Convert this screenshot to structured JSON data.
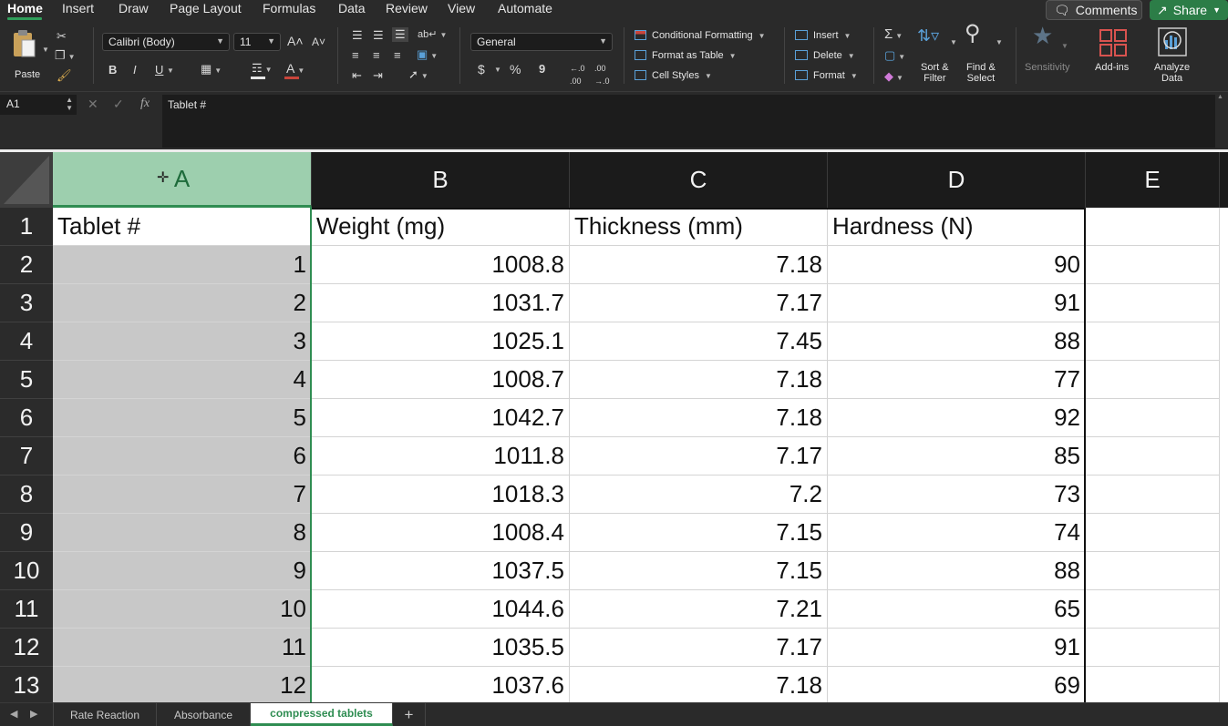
{
  "menu": {
    "tabs": [
      "Home",
      "Insert",
      "Draw",
      "Page Layout",
      "Formulas",
      "Data",
      "Review",
      "View",
      "Automate"
    ],
    "comments_label": "Comments",
    "share_label": "Share"
  },
  "ribbon": {
    "paste_label": "Paste",
    "font_name": "Calibri (Body)",
    "font_size": "11",
    "number_format": "General",
    "conditional_formatting": "Conditional Formatting",
    "format_as_table": "Format as Table",
    "cell_styles": "Cell Styles",
    "insert": "Insert",
    "delete": "Delete",
    "format": "Format",
    "sort_filter": [
      "Sort &",
      "Filter"
    ],
    "find_select": [
      "Find &",
      "Select"
    ],
    "sensitivity": "Sensitivity",
    "add_ins": "Add-ins",
    "analyze_data": [
      "Analyze",
      "Data"
    ],
    "bold": "B",
    "italic": "I",
    "underline": "U",
    "currency": "$",
    "percent": "%",
    "comma": "9"
  },
  "formula_bar": {
    "cell_ref": "A1",
    "fx": "fx",
    "content": "Tablet #"
  },
  "sheet": {
    "columns": [
      "A",
      "B",
      "C",
      "D",
      "E"
    ],
    "selected_column": "A",
    "rows": [
      {
        "n": "1",
        "a": "Tablet #",
        "b": "Weight (mg)",
        "c": "Thickness (mm)",
        "d": "Hardness (N)"
      },
      {
        "n": "2",
        "a": "1",
        "b": "1008.8",
        "c": "7.18",
        "d": "90"
      },
      {
        "n": "3",
        "a": "2",
        "b": "1031.7",
        "c": "7.17",
        "d": "91"
      },
      {
        "n": "4",
        "a": "3",
        "b": "1025.1",
        "c": "7.45",
        "d": "88"
      },
      {
        "n": "5",
        "a": "4",
        "b": "1008.7",
        "c": "7.18",
        "d": "77"
      },
      {
        "n": "6",
        "a": "5",
        "b": "1042.7",
        "c": "7.18",
        "d": "92"
      },
      {
        "n": "7",
        "a": "6",
        "b": "1011.8",
        "c": "7.17",
        "d": "85"
      },
      {
        "n": "8",
        "a": "7",
        "b": "1018.3",
        "c": "7.2",
        "d": "73"
      },
      {
        "n": "9",
        "a": "8",
        "b": "1008.4",
        "c": "7.15",
        "d": "74"
      },
      {
        "n": "10",
        "a": "9",
        "b": "1037.5",
        "c": "7.15",
        "d": "88"
      },
      {
        "n": "11",
        "a": "10",
        "b": "1044.6",
        "c": "7.21",
        "d": "65"
      },
      {
        "n": "12",
        "a": "11",
        "b": "1035.5",
        "c": "7.17",
        "d": "91"
      },
      {
        "n": "13",
        "a": "12",
        "b": "1037.6",
        "c": "7.18",
        "d": "69"
      }
    ]
  },
  "sheet_tabs": {
    "tabs": [
      "Rate Reaction",
      "Absorbance",
      "compressed tablets"
    ],
    "active": "compressed tablets",
    "add_label": "+"
  },
  "colors": {
    "accent_green": "#2f8d52",
    "selected_header": "#9dcfae",
    "selected_cells": "#c8c8c8"
  }
}
